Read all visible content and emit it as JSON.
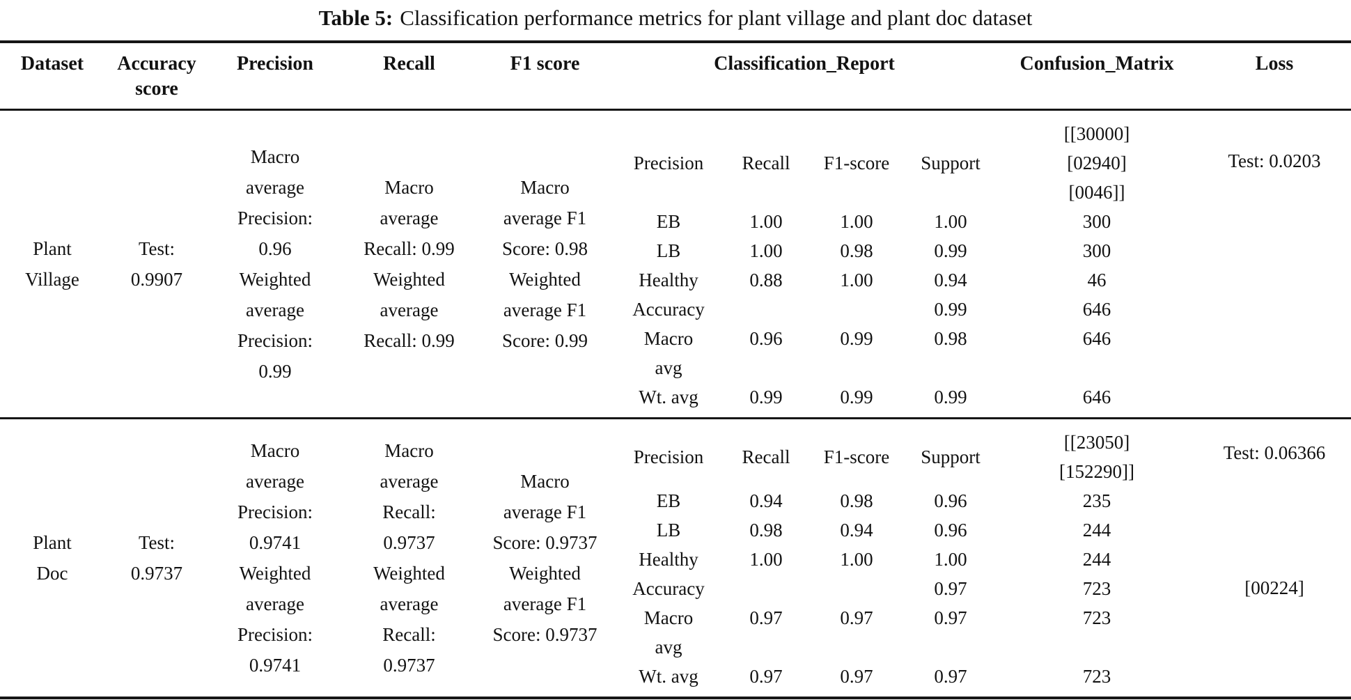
{
  "caption": {
    "label": "Table 5:",
    "text": "Classification performance metrics for plant village and plant doc dataset"
  },
  "columns": {
    "dataset": "Dataset",
    "accuracy": "Accuracy score",
    "precision": "Precision",
    "recall": "Recall",
    "f1": "F1 score",
    "report": "Classification_Report",
    "confusion": "Confusion_Matrix",
    "loss": "Loss"
  },
  "rows": [
    {
      "dataset_lines": [
        "Plant",
        "Village"
      ],
      "accuracy_lines": [
        "Test:",
        "0.9907"
      ],
      "precision_lines": [
        "Macro",
        "average",
        "Precision:",
        "0.96",
        "Weighted",
        "average",
        "Precision:",
        "0.99"
      ],
      "recall_lines": [
        "Macro",
        "average",
        "Recall: 0.99",
        "Weighted",
        "average",
        "Recall: 0.99"
      ],
      "f1_lines": [
        "Macro",
        "average F1",
        "Score: 0.98",
        "Weighted",
        "average F1",
        "Score: 0.99"
      ],
      "report": {
        "header": [
          "Precision",
          "Recall",
          "F1-score",
          "Support"
        ],
        "rows": [
          {
            "label": "EB",
            "values": [
              "1.00",
              "1.00",
              "1.00"
            ],
            "support": "300"
          },
          {
            "label": "LB",
            "values": [
              "1.00",
              "0.98",
              "0.99"
            ],
            "support": "300"
          },
          {
            "label": "Healthy",
            "values": [
              "0.88",
              "1.00",
              "0.94"
            ],
            "support": "46"
          },
          {
            "label": "Accuracy",
            "values": [
              "",
              "",
              "0.99"
            ],
            "support": "646"
          },
          {
            "label": "Macro\navg",
            "values": [
              "0.96",
              "0.99",
              "0.98"
            ],
            "support": "646"
          },
          {
            "label": "Wt. avg",
            "values": [
              "0.99",
              "0.99",
              "0.99"
            ],
            "support": "646"
          }
        ]
      },
      "confusion_matrix_lines": [
        "[[30000]",
        "[02940]",
        "[0046]]"
      ],
      "loss": "Test: 0.0203",
      "loss_extra": ""
    },
    {
      "dataset_lines": [
        "Plant",
        "Doc"
      ],
      "accuracy_lines": [
        "Test:",
        "0.9737"
      ],
      "precision_lines": [
        "Macro",
        "average",
        "Precision:",
        "0.9741",
        "Weighted",
        "average",
        "Precision:",
        "0.9741"
      ],
      "recall_lines": [
        "Macro",
        "average",
        "Recall:",
        "0.9737",
        "Weighted",
        "average",
        "Recall:",
        "0.9737"
      ],
      "f1_lines": [
        "Macro",
        "average F1",
        "Score: 0.9737",
        "Weighted",
        "average F1",
        "Score: 0.9737"
      ],
      "report": {
        "header": [
          "Precision",
          "Recall",
          "F1-score",
          "Support"
        ],
        "rows": [
          {
            "label": "EB",
            "values": [
              "0.94",
              "0.98",
              "0.96"
            ],
            "support": "235"
          },
          {
            "label": "LB",
            "values": [
              "0.98",
              "0.94",
              "0.96"
            ],
            "support": "244"
          },
          {
            "label": "Healthy",
            "values": [
              "1.00",
              "1.00",
              "1.00"
            ],
            "support": "244"
          },
          {
            "label": "Accuracy",
            "values": [
              "",
              "",
              "0.97"
            ],
            "support": "723"
          },
          {
            "label": "Macro\navg",
            "values": [
              "0.97",
              "0.97",
              "0.97"
            ],
            "support": "723"
          },
          {
            "label": "Wt. avg",
            "values": [
              "0.97",
              "0.97",
              "0.97"
            ],
            "support": "723"
          }
        ]
      },
      "confusion_matrix_lines": [
        "[[23050]",
        "[152290]]"
      ],
      "loss": "Test: 0.06366",
      "loss_extra": "[00224]"
    }
  ]
}
